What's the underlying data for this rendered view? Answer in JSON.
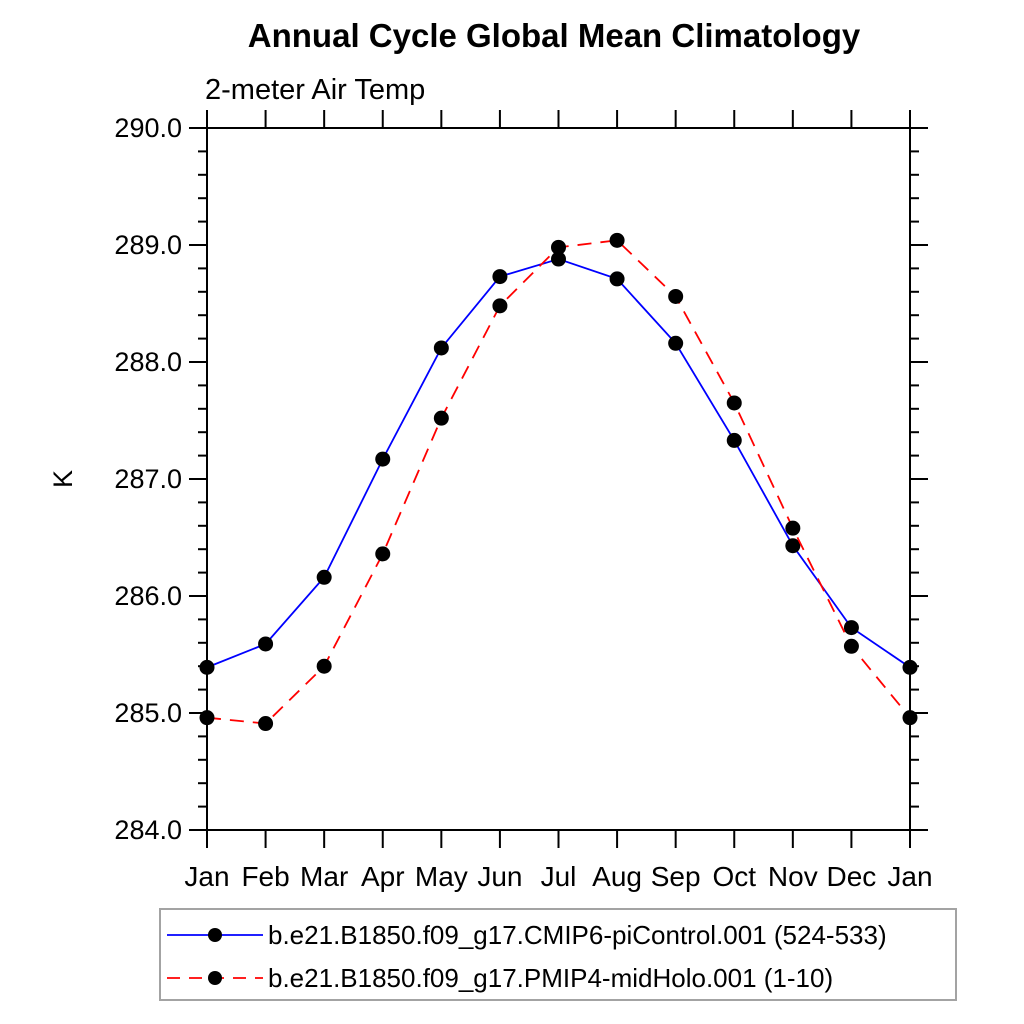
{
  "chart_data": {
    "type": "line",
    "title": "Annual Cycle Global Mean Climatology",
    "subtitle": "2-meter Air Temp",
    "ylabel": "K",
    "xlabel": "",
    "categories": [
      "Jan",
      "Feb",
      "Mar",
      "Apr",
      "May",
      "Jun",
      "Jul",
      "Aug",
      "Sep",
      "Oct",
      "Nov",
      "Dec",
      "Jan"
    ],
    "ylim": [
      284.0,
      290.0
    ],
    "ytick_major_step": 1.0,
    "ytick_minor_step": 0.2,
    "ytick_labels": [
      "284.0",
      "285.0",
      "286.0",
      "287.0",
      "288.0",
      "289.0",
      "290.0"
    ],
    "grid": false,
    "legend_position": "bottom",
    "frame_color": "#000000",
    "series": [
      {
        "name": "b.e21.B1850.f09_g17.CMIP6-piControl.001 (524-533)",
        "color": "#0000ff",
        "line_style": "solid",
        "marker": "filled-circle",
        "marker_color": "#000000",
        "values": [
          285.39,
          285.59,
          286.16,
          287.17,
          288.12,
          288.73,
          288.88,
          288.71,
          288.16,
          287.33,
          286.43,
          285.73,
          285.39
        ]
      },
      {
        "name": "b.e21.B1850.f09_g17.PMIP4-midHolo.001 (1-10)",
        "color": "#ff0000",
        "line_style": "dashed",
        "marker": "filled-circle",
        "marker_color": "#000000",
        "values": [
          284.96,
          284.91,
          285.4,
          286.36,
          287.52,
          288.48,
          288.98,
          289.04,
          288.56,
          287.65,
          286.58,
          285.57,
          284.96
        ]
      }
    ]
  }
}
